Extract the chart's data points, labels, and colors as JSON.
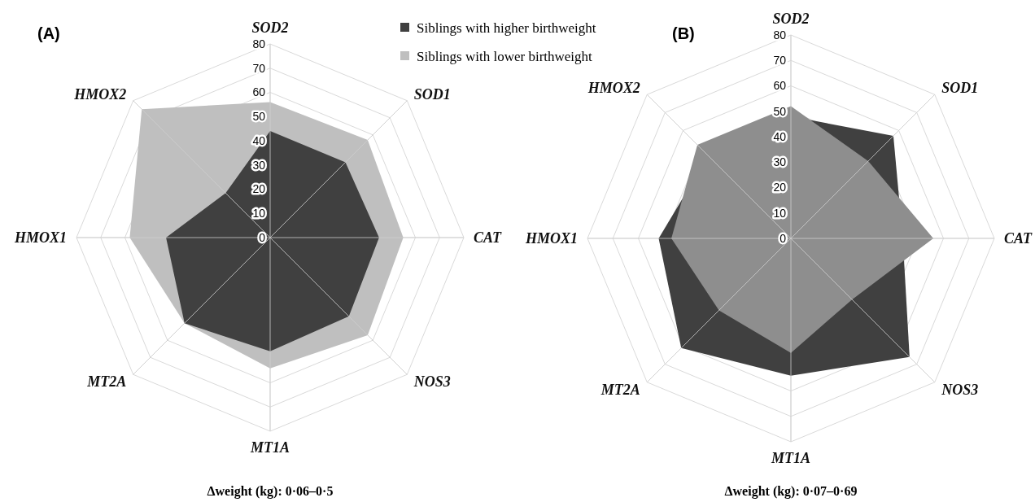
{
  "chart_data": [
    {
      "type": "radar",
      "title": "(A)",
      "categories": [
        "SOD2",
        "SOD1",
        "CAT",
        "NOS3",
        "MT1A",
        "MT2A",
        "HMOX1",
        "HMOX2"
      ],
      "ylim": [
        0,
        80
      ],
      "yticks": [
        0,
        10,
        20,
        30,
        40,
        50,
        60,
        70,
        80
      ],
      "grid": true,
      "legend": "top right",
      "series": [
        {
          "name": "Siblings with lower birthweight",
          "color": "#bfbfbf",
          "values": [
            56,
            57,
            55,
            57,
            54,
            50,
            58,
            75
          ]
        },
        {
          "name": "Siblings with higher birthweight",
          "color": "#404040",
          "values": [
            44,
            44,
            45,
            46,
            47,
            50,
            43,
            26
          ]
        }
      ],
      "annotations": [
        "Δweight (kg): 0·06–0·5"
      ]
    },
    {
      "type": "radar",
      "title": "(B)",
      "categories": [
        "SOD2",
        "SOD1",
        "CAT",
        "NOS3",
        "MT1A",
        "MT2A",
        "HMOX1",
        "HMOX2"
      ],
      "ylim": [
        0,
        80
      ],
      "yticks": [
        0,
        10,
        20,
        30,
        40,
        50,
        60,
        70,
        80
      ],
      "grid": true,
      "series": [
        {
          "color": "#404040",
          "values": [
            48,
            57,
            44,
            66,
            54,
            61,
            52,
            46
          ]
        },
        {
          "color": "#8e8e8e",
          "values": [
            52,
            43,
            56,
            34,
            45,
            40,
            47,
            52
          ]
        }
      ],
      "annotations": [
        "Δweight (kg): 0·07–0·69"
      ]
    }
  ]
}
